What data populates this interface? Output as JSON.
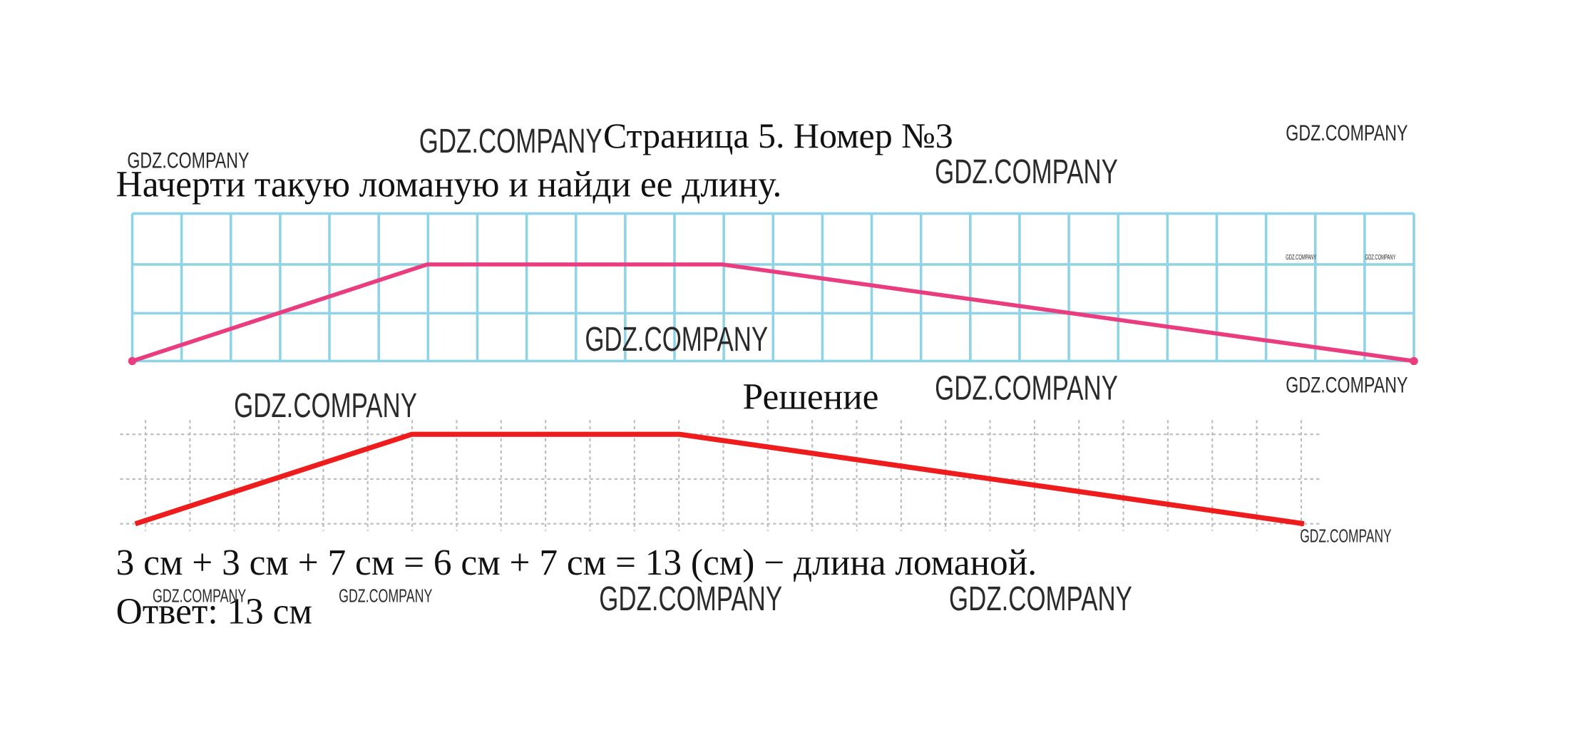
{
  "header": {
    "title": "Страница 5. Номер №3"
  },
  "task": "Начерти такую ломаную и найди ее длину.",
  "solution": {
    "heading": "Решение",
    "equation": "3 см + 3 см + 7 см = 6 см + 7 см = 13 (см) − длина ломаной.",
    "answer": "Ответ: 13 см"
  },
  "watermarks": [
    "GDZ.COMPANY",
    "GDZ.COMPANY",
    "GDZ.COMPANY",
    "GDZ.COMPANY",
    "GDZ.COMPANY",
    "GDZ.COMPANY",
    "GDZ.COMPANY",
    "GDZ.COMPANY",
    "GDZ.COMPANY",
    "GDZ.COMPANY",
    "GDZ.COMPANY",
    "GDZ.COMPANY",
    "GDZ.COMPANY",
    "GDZ.COMPANY",
    "GDZ.COMPANY"
  ]
}
